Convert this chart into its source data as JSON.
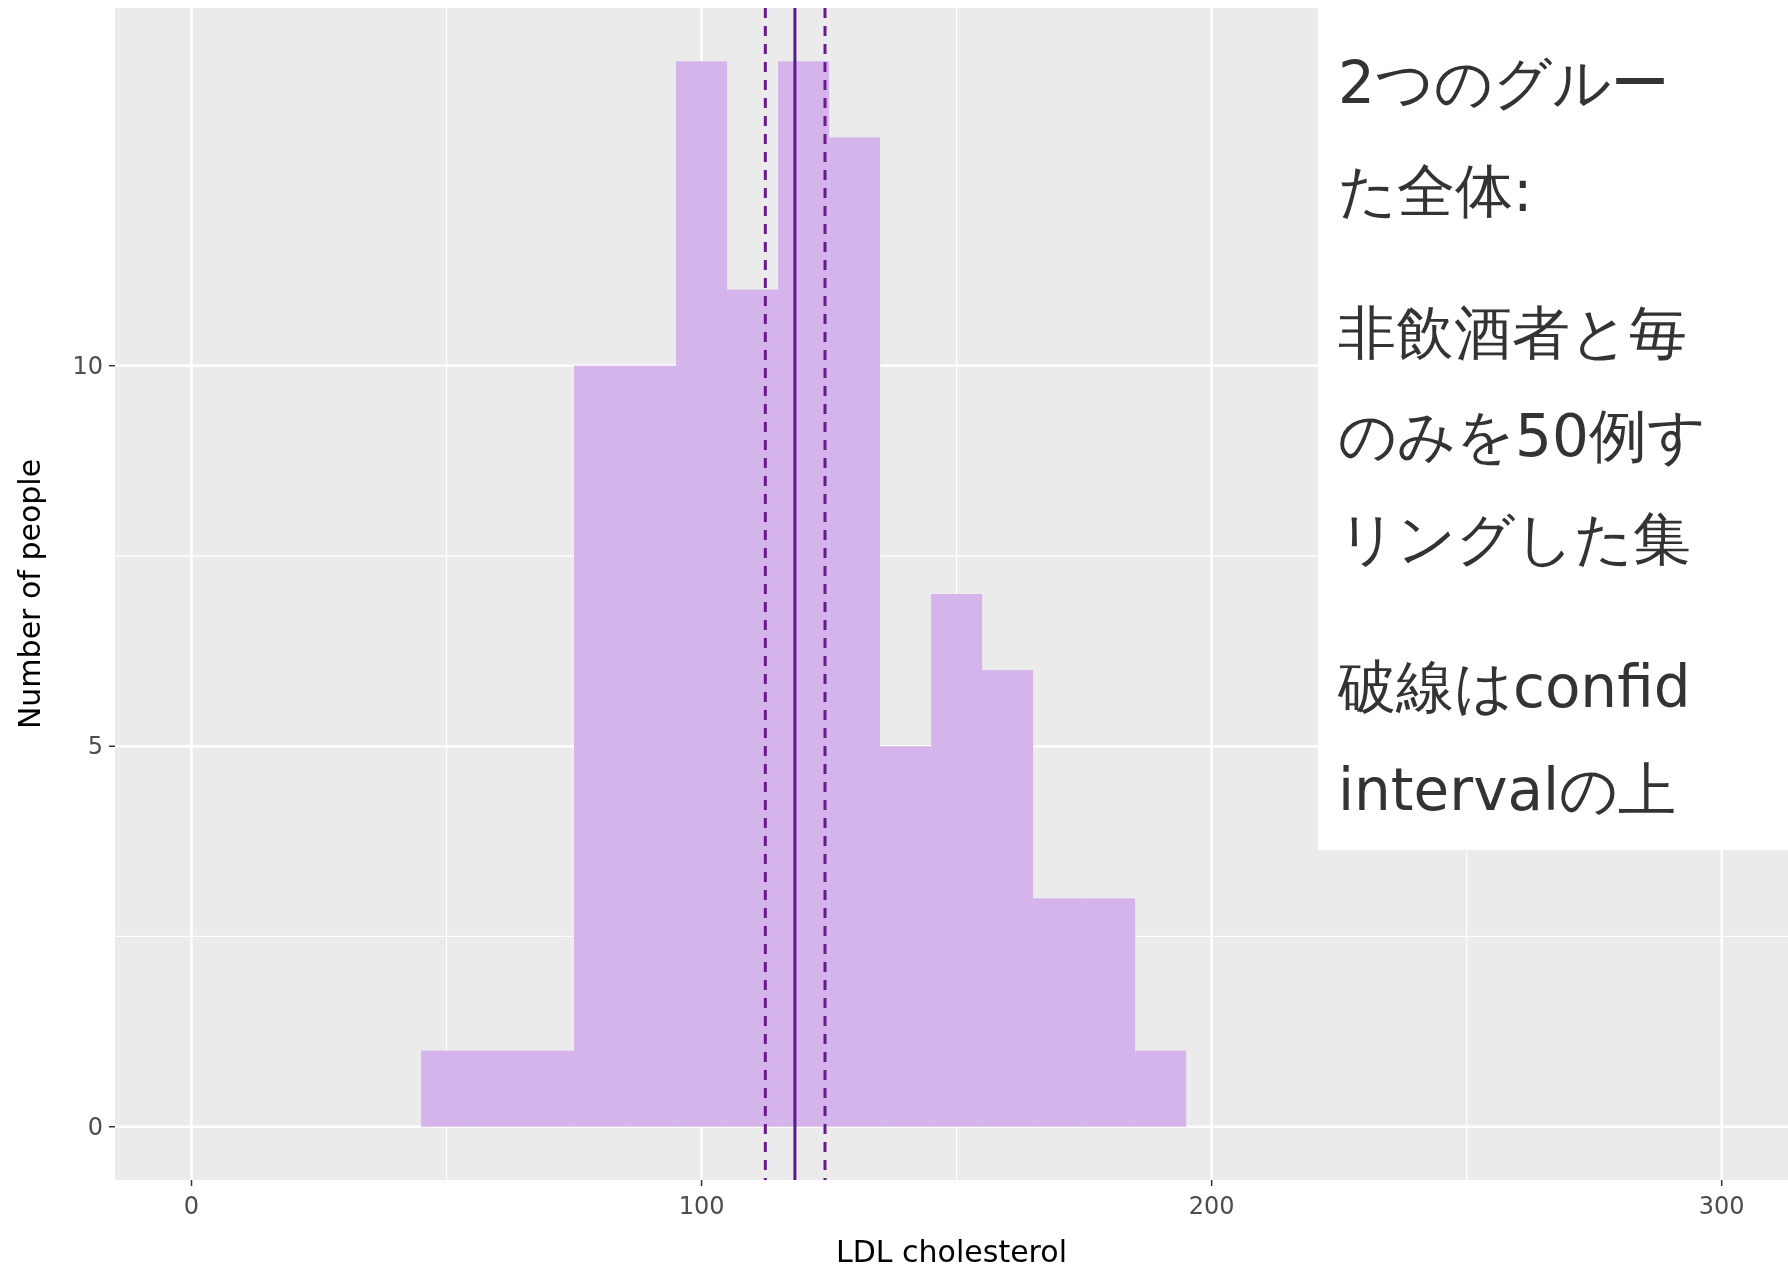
{
  "chart_data": {
    "type": "histogram",
    "xlabel": "LDL cholesterol",
    "ylabel": "Number of people",
    "bins": [
      45,
      55,
      65,
      75,
      85,
      95,
      105,
      115,
      125,
      135,
      145,
      155,
      165,
      175,
      185,
      195
    ],
    "values": [
      1,
      1,
      1,
      10,
      10,
      14,
      11,
      14,
      13,
      5,
      7,
      6,
      3,
      3,
      1
    ],
    "color": "#d5b4ec",
    "xlim": [
      -15,
      313
    ],
    "xticks": [
      0,
      100,
      200,
      300
    ],
    "ylim": [
      -0.7,
      14.7
    ],
    "yticks": [
      0,
      5,
      10
    ],
    "grid": true,
    "ref_lines": [
      {
        "axis": "x",
        "value": 112.5,
        "color": "#6a1b8a",
        "line_style": "dashed"
      },
      {
        "axis": "x",
        "value": 118.3,
        "color": "#5a1a8c",
        "line_style": "solid"
      },
      {
        "axis": "x",
        "value": 124.2,
        "color": "#6a1b8a",
        "line_style": "dashed"
      }
    ],
    "annotations": [
      "2つのグルー",
      "た全体:",
      "非飲酒者と毎",
      "のみを50例す",
      "リングした集",
      "破線はconfid",
      "intervalの上"
    ]
  }
}
